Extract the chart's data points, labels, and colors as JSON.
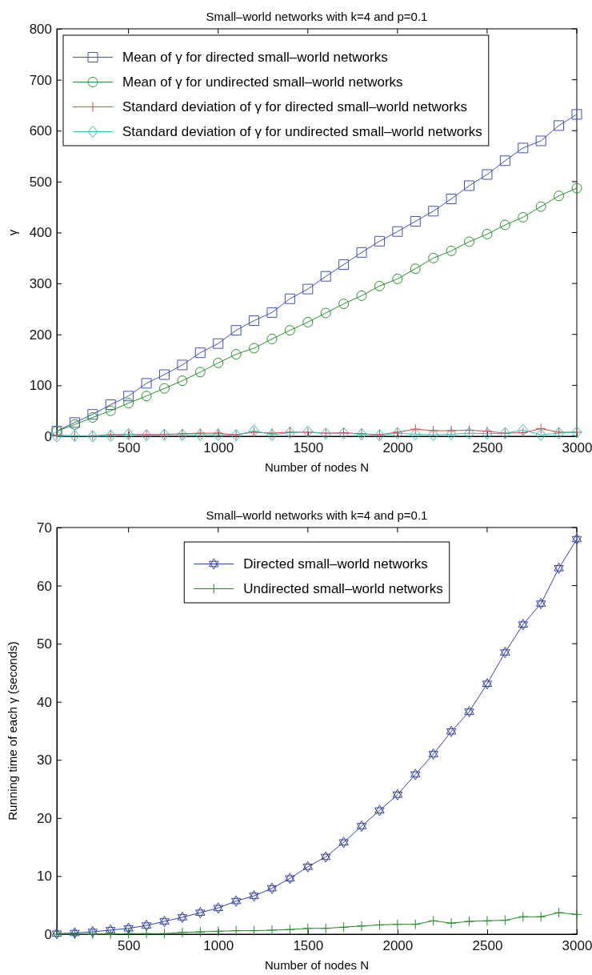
{
  "chart_data": [
    {
      "type": "line",
      "title": "Small‒world networks with k=4 and p=0.1",
      "xlabel": "Number of nodes N",
      "ylabel": "γ",
      "legend": "top left",
      "x": [
        100,
        200,
        300,
        400,
        500,
        600,
        700,
        800,
        900,
        1000,
        1100,
        1200,
        1300,
        1400,
        1500,
        1600,
        1700,
        1800,
        1900,
        2000,
        2100,
        2200,
        2300,
        2400,
        2500,
        2600,
        2700,
        2800,
        2900,
        3000
      ],
      "xlim": [
        100,
        3000
      ],
      "xticks": [
        500,
        1000,
        1500,
        2000,
        2500,
        3000
      ],
      "ylim": [
        0,
        800
      ],
      "yticks": [
        0,
        100,
        200,
        300,
        400,
        500,
        600,
        700,
        800
      ],
      "series": [
        {
          "name": "Mean of γ for directed small‒world networks",
          "color": "#4152b8",
          "marker": "square",
          "values": [
            10,
            27,
            43,
            62,
            79,
            104,
            121,
            140,
            164,
            182,
            208,
            227,
            243,
            270,
            289,
            314,
            337,
            361,
            383,
            402,
            422,
            442,
            466,
            492,
            514,
            541,
            566,
            580,
            610,
            632
          ]
        },
        {
          "name": "Mean of γ for undirected small‒world networks",
          "color": "#23962a",
          "marker": "circle",
          "values": [
            10,
            23,
            37,
            50,
            65,
            79,
            94,
            109,
            126,
            144,
            161,
            173,
            191,
            208,
            224,
            242,
            260,
            276,
            295,
            309,
            329,
            350,
            364,
            382,
            397,
            415,
            430,
            451,
            472,
            487
          ]
        },
        {
          "name": "Standard deviation of γ for directed small‒world networks",
          "color": "#e8453c",
          "marker": "cross",
          "values": [
            2,
            1,
            1,
            3,
            4,
            3,
            4,
            5,
            6,
            6,
            3,
            8,
            6,
            8,
            8,
            6,
            7,
            5,
            3,
            8,
            14,
            11,
            11,
            12,
            10,
            6,
            7,
            15,
            8,
            8
          ]
        },
        {
          "name": "Standard deviation of γ for  undirected small‒world networks",
          "color": "#27c3c8",
          "marker": "diamond",
          "values": [
            0,
            1,
            0,
            1,
            4,
            2,
            3,
            3,
            3,
            3,
            2,
            11,
            3,
            7,
            9,
            5,
            6,
            4,
            2,
            6,
            4,
            3,
            4,
            6,
            5,
            6,
            12,
            3,
            6,
            8
          ]
        }
      ]
    },
    {
      "type": "line",
      "title": "Small‒world networks with k=4 and p=0.1",
      "xlabel": "Number of nodes N",
      "ylabel": "Running time of each γ (seconds)",
      "legend": "top",
      "x": [
        100,
        200,
        300,
        400,
        500,
        600,
        700,
        800,
        900,
        1000,
        1100,
        1200,
        1300,
        1400,
        1500,
        1600,
        1700,
        1800,
        1900,
        2000,
        2100,
        2200,
        2300,
        2400,
        2500,
        2600,
        2700,
        2800,
        2900,
        3000
      ],
      "xlim": [
        100,
        3000
      ],
      "xticks": [
        500,
        1000,
        1500,
        2000,
        2500,
        3000
      ],
      "ylim": [
        0,
        70
      ],
      "yticks": [
        0,
        10,
        20,
        30,
        40,
        50,
        60,
        70
      ],
      "series": [
        {
          "name": "Directed small‒world networks",
          "color": "#3344aa",
          "marker": "star",
          "values": [
            0.1,
            0.2,
            0.4,
            0.7,
            1.0,
            1.5,
            2.2,
            2.9,
            3.7,
            4.5,
            5.7,
            6.6,
            7.9,
            9.6,
            11.6,
            13.3,
            15.8,
            18.6,
            21.3,
            24.0,
            27.5,
            31.0,
            34.9,
            38.3,
            43.1,
            48.5,
            53.3,
            56.9,
            63.0,
            68.0
          ]
        },
        {
          "name": "Undirected small‒world networks",
          "color": "#1f8f24",
          "marker": "cross",
          "values": [
            0,
            0,
            0,
            0,
            0.1,
            0.1,
            0.1,
            0.3,
            0.4,
            0.5,
            0.6,
            0.6,
            0.7,
            0.8,
            1.0,
            1.0,
            1.2,
            1.4,
            1.6,
            1.7,
            1.7,
            2.3,
            1.9,
            2.2,
            2.3,
            2.4,
            3.0,
            3.0,
            3.7,
            3.4
          ]
        }
      ]
    }
  ]
}
